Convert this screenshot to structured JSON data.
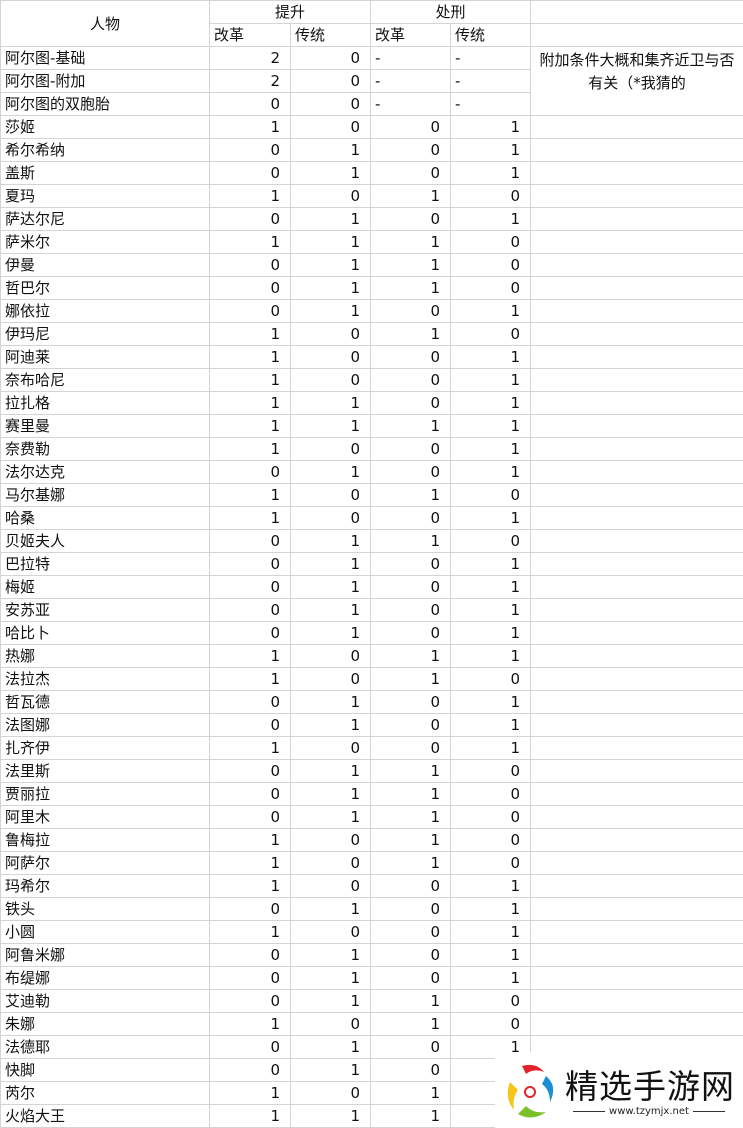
{
  "header": {
    "person": "人物",
    "promote": "提升",
    "execute": "处刑",
    "reform": "改革",
    "tradition": "传统"
  },
  "note": "附加条件大概和集齐近卫与否有关（*我猜的",
  "rows": [
    [
      "阿尔图-基础",
      "2",
      "0",
      "-",
      "-"
    ],
    [
      "阿尔图-附加",
      "2",
      "0",
      "-",
      "-"
    ],
    [
      "阿尔图的双胞胎",
      "0",
      "0",
      "-",
      "-"
    ],
    [
      "莎姬",
      "1",
      "0",
      "0",
      "1"
    ],
    [
      "希尔希纳",
      "0",
      "1",
      "0",
      "1"
    ],
    [
      "盖斯",
      "0",
      "1",
      "0",
      "1"
    ],
    [
      "夏玛",
      "1",
      "0",
      "1",
      "0"
    ],
    [
      "萨达尔尼",
      "0",
      "1",
      "0",
      "1"
    ],
    [
      "萨米尔",
      "1",
      "1",
      "1",
      "0"
    ],
    [
      "伊曼",
      "0",
      "1",
      "1",
      "0"
    ],
    [
      "哲巴尔",
      "0",
      "1",
      "1",
      "0"
    ],
    [
      "娜依拉",
      "0",
      "1",
      "0",
      "1"
    ],
    [
      "伊玛尼",
      "1",
      "0",
      "1",
      "0"
    ],
    [
      "阿迪莱",
      "1",
      "0",
      "0",
      "1"
    ],
    [
      "奈布哈尼",
      "1",
      "0",
      "0",
      "1"
    ],
    [
      "拉扎格",
      "1",
      "1",
      "0",
      "1"
    ],
    [
      "赛里曼",
      "1",
      "1",
      "1",
      "1"
    ],
    [
      "奈费勒",
      "1",
      "0",
      "0",
      "1"
    ],
    [
      "法尔达克",
      "0",
      "1",
      "0",
      "1"
    ],
    [
      "马尔基娜",
      "1",
      "0",
      "1",
      "0"
    ],
    [
      "哈桑",
      "1",
      "0",
      "0",
      "1"
    ],
    [
      "贝姬夫人",
      "0",
      "1",
      "1",
      "0"
    ],
    [
      "巴拉特",
      "0",
      "1",
      "0",
      "1"
    ],
    [
      "梅姬",
      "0",
      "1",
      "0",
      "1"
    ],
    [
      "安苏亚",
      "0",
      "1",
      "0",
      "1"
    ],
    [
      "哈比卜",
      "0",
      "1",
      "0",
      "1"
    ],
    [
      "热娜",
      "1",
      "0",
      "1",
      "1"
    ],
    [
      "法拉杰",
      "1",
      "0",
      "1",
      "0"
    ],
    [
      "哲瓦德",
      "0",
      "1",
      "0",
      "1"
    ],
    [
      "法图娜",
      "0",
      "1",
      "0",
      "1"
    ],
    [
      "扎齐伊",
      "1",
      "0",
      "0",
      "1"
    ],
    [
      "法里斯",
      "0",
      "1",
      "1",
      "0"
    ],
    [
      "贾丽拉",
      "0",
      "1",
      "1",
      "0"
    ],
    [
      "阿里木",
      "0",
      "1",
      "1",
      "0"
    ],
    [
      "鲁梅拉",
      "1",
      "0",
      "1",
      "0"
    ],
    [
      "阿萨尔",
      "1",
      "0",
      "1",
      "0"
    ],
    [
      "玛希尔",
      "1",
      "0",
      "0",
      "1"
    ],
    [
      "铁头",
      "0",
      "1",
      "0",
      "1"
    ],
    [
      "小圆",
      "1",
      "0",
      "0",
      "1"
    ],
    [
      "阿鲁米娜",
      "0",
      "1",
      "0",
      "1"
    ],
    [
      "布缇娜",
      "0",
      "1",
      "0",
      "1"
    ],
    [
      "艾迪勒",
      "0",
      "1",
      "1",
      "0"
    ],
    [
      "朱娜",
      "1",
      "0",
      "1",
      "0"
    ],
    [
      "法德耶",
      "0",
      "1",
      "0",
      "1"
    ],
    [
      "快脚",
      "0",
      "1",
      "0",
      ""
    ],
    [
      "芮尔",
      "1",
      "0",
      "1",
      ""
    ],
    [
      "火焰大王",
      "1",
      "1",
      "1",
      ""
    ]
  ],
  "watermark": {
    "brand": "精选手游网",
    "url": "www.tzymjx.net",
    "colors": [
      "#e0262b",
      "#1a8fd6",
      "#f5c518",
      "#7bbf2a"
    ]
  }
}
